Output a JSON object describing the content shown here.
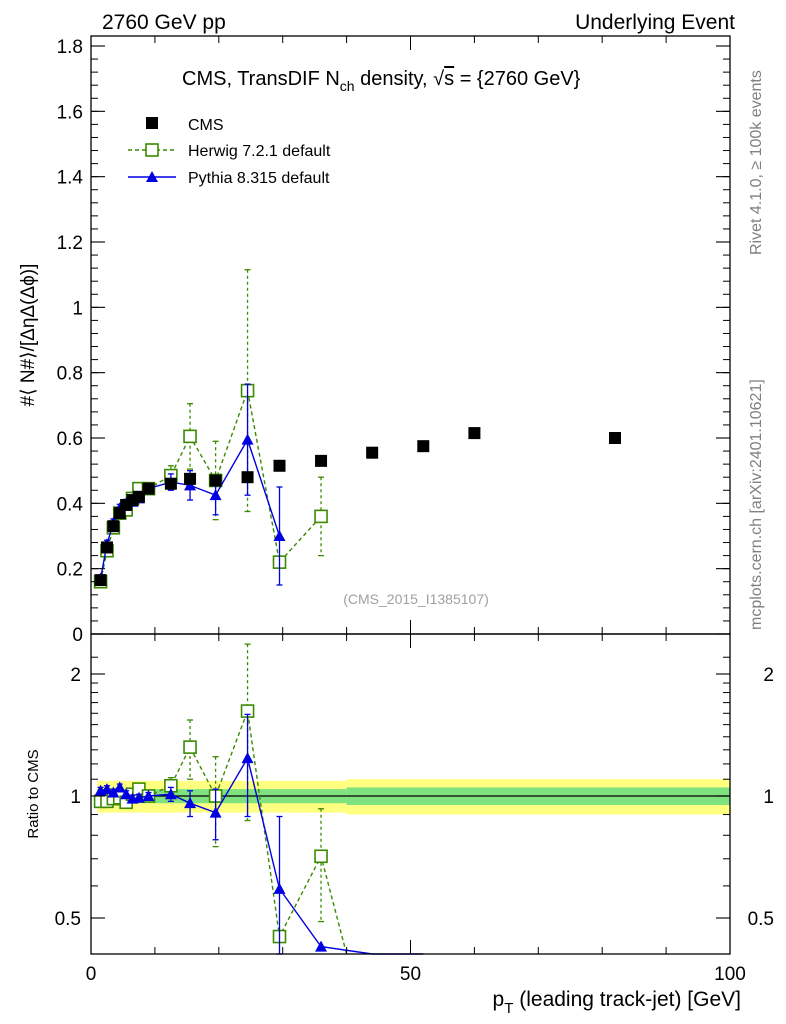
{
  "header": {
    "left": "2760 GeV pp",
    "right": "Underlying Event"
  },
  "side_labels": {
    "rivet": "Rivet 4.1.0, ≥ 100k events",
    "mcplots": "mcplots.cern.ch [arXiv:2401.10621]"
  },
  "colors": {
    "cms": "#000000",
    "herwig": "#3a8a00",
    "pythia": "#0000e0",
    "band_inner": "#7fe27f",
    "band_outer": "#ffff80",
    "unity_line": "#3d7c6b"
  },
  "chart_data": [
    {
      "type": "scatter",
      "panel": "main",
      "title_parts": [
        "CMS, TransDIF N",
        "ch",
        " density, ",
        "√",
        "s",
        " = {2760 GeV}"
      ],
      "ylabel": "#⟨ N#⟩/[ΔηΔ(Δϕ)]",
      "xlabel": "",
      "xlim": [
        0,
        100
      ],
      "ylim": [
        0,
        1.85
      ],
      "yticks": [
        0,
        0.2,
        0.4,
        0.6,
        0.8,
        1,
        1.2,
        1.4,
        1.6,
        1.8
      ],
      "ytick_labels": [
        "0",
        "0.2",
        "0.4",
        "0.6",
        "0.8",
        "1",
        "1.2",
        "1.4",
        "1.6",
        "1.8"
      ],
      "watermark": "(CMS_2015_I1385107)",
      "legend_position": "top-left",
      "series": [
        {
          "name": "CMS",
          "style": "square-filled",
          "points": [
            [
              1.5,
              0.165
            ],
            [
              2.5,
              0.265
            ],
            [
              3.5,
              0.33
            ],
            [
              4.5,
              0.37
            ],
            [
              5.5,
              0.395
            ],
            [
              6.5,
              0.41
            ],
            [
              7.5,
              0.42
            ],
            [
              9,
              0.445
            ],
            [
              12.5,
              0.46
            ],
            [
              15.5,
              0.475
            ],
            [
              19.5,
              0.47
            ],
            [
              24.5,
              0.48
            ],
            [
              29.5,
              0.515
            ],
            [
              36,
              0.53
            ],
            [
              44,
              0.555
            ],
            [
              52,
              0.575
            ],
            [
              60,
              0.615
            ],
            [
              82,
              0.6
            ]
          ]
        },
        {
          "name": "Herwig 7.2.1 default",
          "style": "square-open-dashed",
          "points": [
            [
              1.5,
              0.16
            ],
            [
              2.5,
              0.255
            ],
            [
              3.5,
              0.325
            ],
            [
              4.5,
              0.37
            ],
            [
              5.5,
              0.38
            ],
            [
              6.5,
              0.415
            ],
            [
              7.5,
              0.445
            ],
            [
              9,
              0.445
            ],
            [
              12.5,
              0.485
            ],
            [
              15.5,
              0.605
            ],
            [
              19.5,
              0.47
            ],
            [
              24.5,
              0.745
            ],
            [
              29.5,
              0.22
            ],
            [
              36,
              0.36
            ]
          ],
          "errors": [
            0.01,
            0.012,
            0.015,
            0.015,
            0.015,
            0.015,
            0.015,
            0.015,
            0.03,
            0.1,
            0.12,
            0.37,
            0.0,
            0.12
          ]
        },
        {
          "name": "Pythia 8.315 default",
          "style": "triangle-solid",
          "points": [
            [
              1.5,
              0.17
            ],
            [
              2.5,
              0.275
            ],
            [
              3.5,
              0.34
            ],
            [
              4.5,
              0.385
            ],
            [
              5.5,
              0.4
            ],
            [
              6.5,
              0.405
            ],
            [
              7.5,
              0.415
            ],
            [
              9,
              0.445
            ],
            [
              12.5,
              0.465
            ],
            [
              15.5,
              0.455
            ],
            [
              19.5,
              0.425
            ],
            [
              24.5,
              0.595
            ],
            [
              29.5,
              0.3
            ]
          ],
          "errors": [
            0.01,
            0.012,
            0.012,
            0.012,
            0.012,
            0.012,
            0.012,
            0.015,
            0.025,
            0.045,
            0.06,
            0.17,
            0.15
          ]
        }
      ]
    },
    {
      "type": "scatter",
      "panel": "ratio",
      "ylabel": "Ratio to CMS",
      "xlabel_parts": [
        "p",
        "T",
        " (leading track-jet) [GeV]"
      ],
      "xlim": [
        0,
        100
      ],
      "ylim": [
        0.38,
        2.35
      ],
      "yscale": "log",
      "yticks": [
        0.5,
        1,
        2
      ],
      "ytick_labels": [
        "0.5",
        "1",
        "2"
      ],
      "xticks": [
        0,
        50,
        100
      ],
      "xtick_labels": [
        "0",
        "50",
        "100"
      ],
      "reference_band": {
        "segments": [
          [
            1,
            40,
            0.04,
            0.09
          ],
          [
            40,
            100,
            0.05,
            0.1
          ]
        ]
      },
      "series": [
        {
          "name": "Herwig 7.2.1 default",
          "style": "square-open-dashed",
          "points": [
            [
              1.5,
              0.97
            ],
            [
              2.5,
              0.97
            ],
            [
              3.5,
              0.985
            ],
            [
              4.5,
              0.99
            ],
            [
              5.5,
              0.965
            ],
            [
              6.5,
              1.01
            ],
            [
              7.5,
              1.04
            ],
            [
              9,
              1.0
            ],
            [
              12.5,
              1.06
            ],
            [
              15.5,
              1.32
            ],
            [
              19.5,
              1.0
            ],
            [
              24.5,
              1.62
            ],
            [
              29.5,
              0.45
            ],
            [
              36,
              0.71
            ],
            [
              40,
              0.38
            ]
          ],
          "errors": [
            0.02,
            0.02,
            0.02,
            0.02,
            0.02,
            0.02,
            0.02,
            0.02,
            0.05,
            0.22,
            0.25,
            0.75,
            0.0,
            0.22,
            0.0
          ]
        },
        {
          "name": "Pythia 8.315 default",
          "style": "triangle-solid",
          "points": [
            [
              1.5,
              1.03
            ],
            [
              2.5,
              1.04
            ],
            [
              3.5,
              1.02
            ],
            [
              4.5,
              1.05
            ],
            [
              5.5,
              1.01
            ],
            [
              6.5,
              0.985
            ],
            [
              7.5,
              0.99
            ],
            [
              9,
              1.0
            ],
            [
              12.5,
              1.01
            ],
            [
              15.5,
              0.96
            ],
            [
              19.5,
              0.91
            ],
            [
              24.5,
              1.24
            ],
            [
              29.5,
              0.59
            ],
            [
              36,
              0.425
            ],
            [
              44,
              0.405
            ],
            [
              52,
              0.39
            ]
          ],
          "errors": [
            0.02,
            0.02,
            0.02,
            0.02,
            0.02,
            0.02,
            0.02,
            0.02,
            0.04,
            0.07,
            0.13,
            0.35,
            0.3,
            0.0,
            0.0,
            0.0
          ]
        }
      ]
    }
  ]
}
